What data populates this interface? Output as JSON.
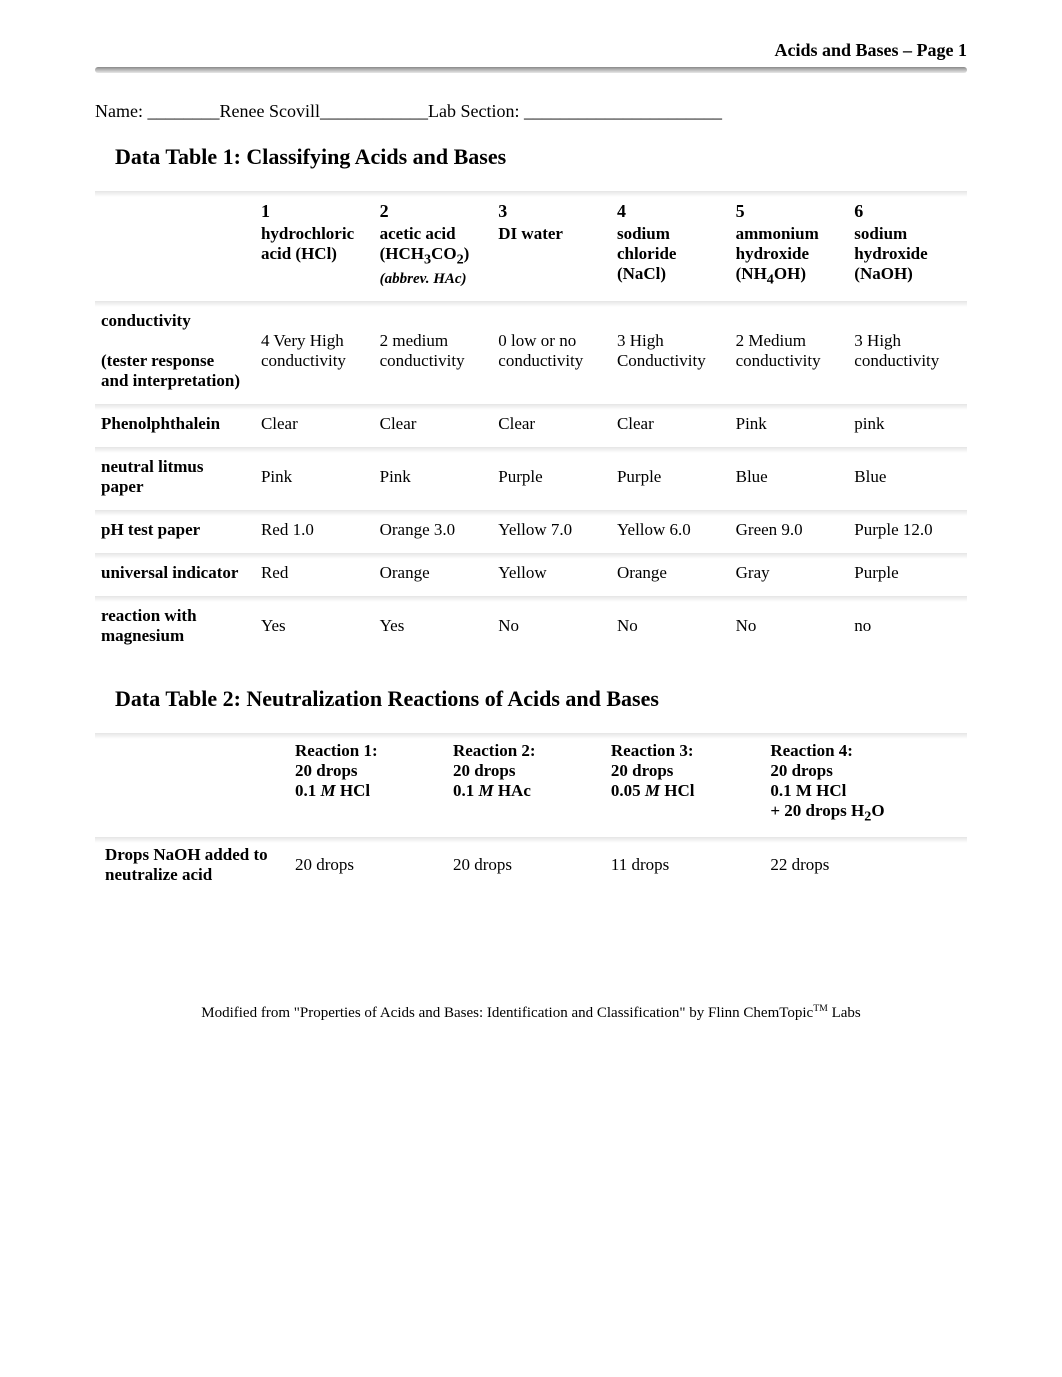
{
  "header": {
    "right_text": "Acids and Bases – Page 1",
    "name_label": "Name: ________",
    "name_value": "Renee Scovill",
    "name_underline": "____________",
    "lab_section_label": "Lab Section: ______________________"
  },
  "table1": {
    "title": "Data Table 1: Classifying Acids and Bases",
    "columns": [
      {
        "num": "1",
        "name_html": "hydrochloric acid (HCl)"
      },
      {
        "num": "2",
        "name_html": "acetic acid (HCH<sub>3</sub>CO<sub>2</sub>)",
        "abbrev": "(abbrev. HAc)"
      },
      {
        "num": "3",
        "name_html": "DI water"
      },
      {
        "num": "4",
        "name_html": "sodium chloride (NaCl)"
      },
      {
        "num": "5",
        "name_html": "ammonium hydroxide (NH<sub>4</sub>OH)"
      },
      {
        "num": "6",
        "name_html": "sodium hydroxide (NaOH)"
      }
    ],
    "rows": [
      {
        "label_html": "conductivity<br><br>(tester response and interpretation)",
        "cells": [
          "4 Very High conductivity",
          "2 medium conductivity",
          "0 low or no conductivity",
          "3 High Conductivity",
          "2 Medium conductivity",
          "3 High conductivity"
        ]
      },
      {
        "label_html": "Phenolphthalein",
        "cells": [
          "Clear",
          "Clear",
          "Clear",
          "Clear",
          "Pink",
          "pink"
        ]
      },
      {
        "label_html": "neutral litmus paper",
        "cells": [
          "Pink",
          "Pink",
          "Purple",
          "Purple",
          "Blue",
          "Blue"
        ]
      },
      {
        "label_html": "pH test paper",
        "cells": [
          "Red 1.0",
          "Orange 3.0",
          "Yellow 7.0",
          "Yellow 6.0",
          "Green 9.0",
          "Purple 12.0"
        ]
      },
      {
        "label_html": "universal indicator",
        "cells": [
          "Red",
          "Orange",
          "Yellow",
          "Orange",
          "Gray",
          "Purple"
        ]
      },
      {
        "label_html": "reaction with magnesium",
        "cells": [
          "Yes",
          "Yes",
          "No",
          "No",
          "No",
          "no"
        ]
      }
    ]
  },
  "table2": {
    "title": "Data Table 2: Neutralization Reactions of Acids and Bases",
    "columns": [
      {
        "lines": [
          "Reaction 1:",
          "20 drops",
          "0.1 <i>M</i> HCl"
        ]
      },
      {
        "lines": [
          "Reaction 2:",
          "20 drops",
          "0.1 <i>M</i> HAc"
        ]
      },
      {
        "lines": [
          "Reaction 3:",
          "20 drops",
          "0.05 <i>M</i> HCl"
        ]
      },
      {
        "lines": [
          "Reaction 4:",
          "20 drops",
          "0.1 M HCl",
          "+ 20 drops H<sub>2</sub>O"
        ]
      }
    ],
    "rows": [
      {
        "label_html": "Drops NaOH added to neutralize acid",
        "cells": [
          "20 drops",
          "20 drops",
          "11 drops",
          "22 drops"
        ]
      }
    ]
  },
  "footer": {
    "text_html": "Modified from \"Properties of Acids and Bases: Identification and Classification\" by Flinn ChemTopic<span class='tm'>TM</span> Labs"
  }
}
